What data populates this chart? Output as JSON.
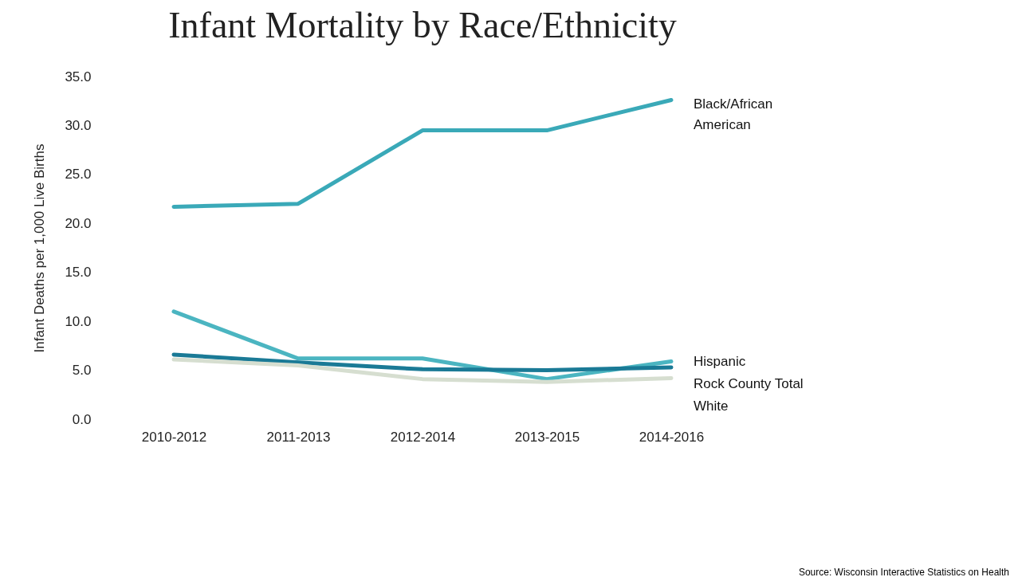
{
  "chart_data": {
    "type": "line",
    "title": "Infant Mortality by Race/Ethnicity",
    "ylabel": "Infant Deaths per 1,000 Live Births",
    "categories": [
      "2010-2012",
      "2011-2013",
      "2012-2014",
      "2013-2015",
      "2014-2016"
    ],
    "series": [
      {
        "name": "Black/African American",
        "color": "#3aa9b8",
        "values": [
          21.7,
          22.0,
          29.5,
          29.5,
          32.6
        ]
      },
      {
        "name": "Hispanic",
        "color": "#4bb5c1",
        "values": [
          11.0,
          6.2,
          6.2,
          4.1,
          5.9
        ]
      },
      {
        "name": "Rock County Total",
        "color": "#1a7a96",
        "values": [
          6.6,
          5.8,
          5.1,
          5.0,
          5.3
        ]
      },
      {
        "name": "White",
        "color": "#d6ded0",
        "values": [
          6.1,
          5.5,
          4.1,
          3.8,
          4.2
        ]
      }
    ],
    "ylim": [
      0,
      35
    ],
    "yticks": [
      {
        "value": 0,
        "label": "0.0"
      },
      {
        "value": 5,
        "label": "5.0"
      },
      {
        "value": 10,
        "label": "10.0"
      },
      {
        "value": 15,
        "label": "15.0"
      },
      {
        "value": 20,
        "label": "20.0"
      },
      {
        "value": 25,
        "label": "25.0"
      },
      {
        "value": 30,
        "label": "30.0"
      },
      {
        "value": 35,
        "label": "35.0"
      }
    ],
    "grid": false,
    "marker": "none",
    "line_style": "solid",
    "annotations": [
      "Source: Wisconsin Interactive Statistics on Health"
    ]
  }
}
